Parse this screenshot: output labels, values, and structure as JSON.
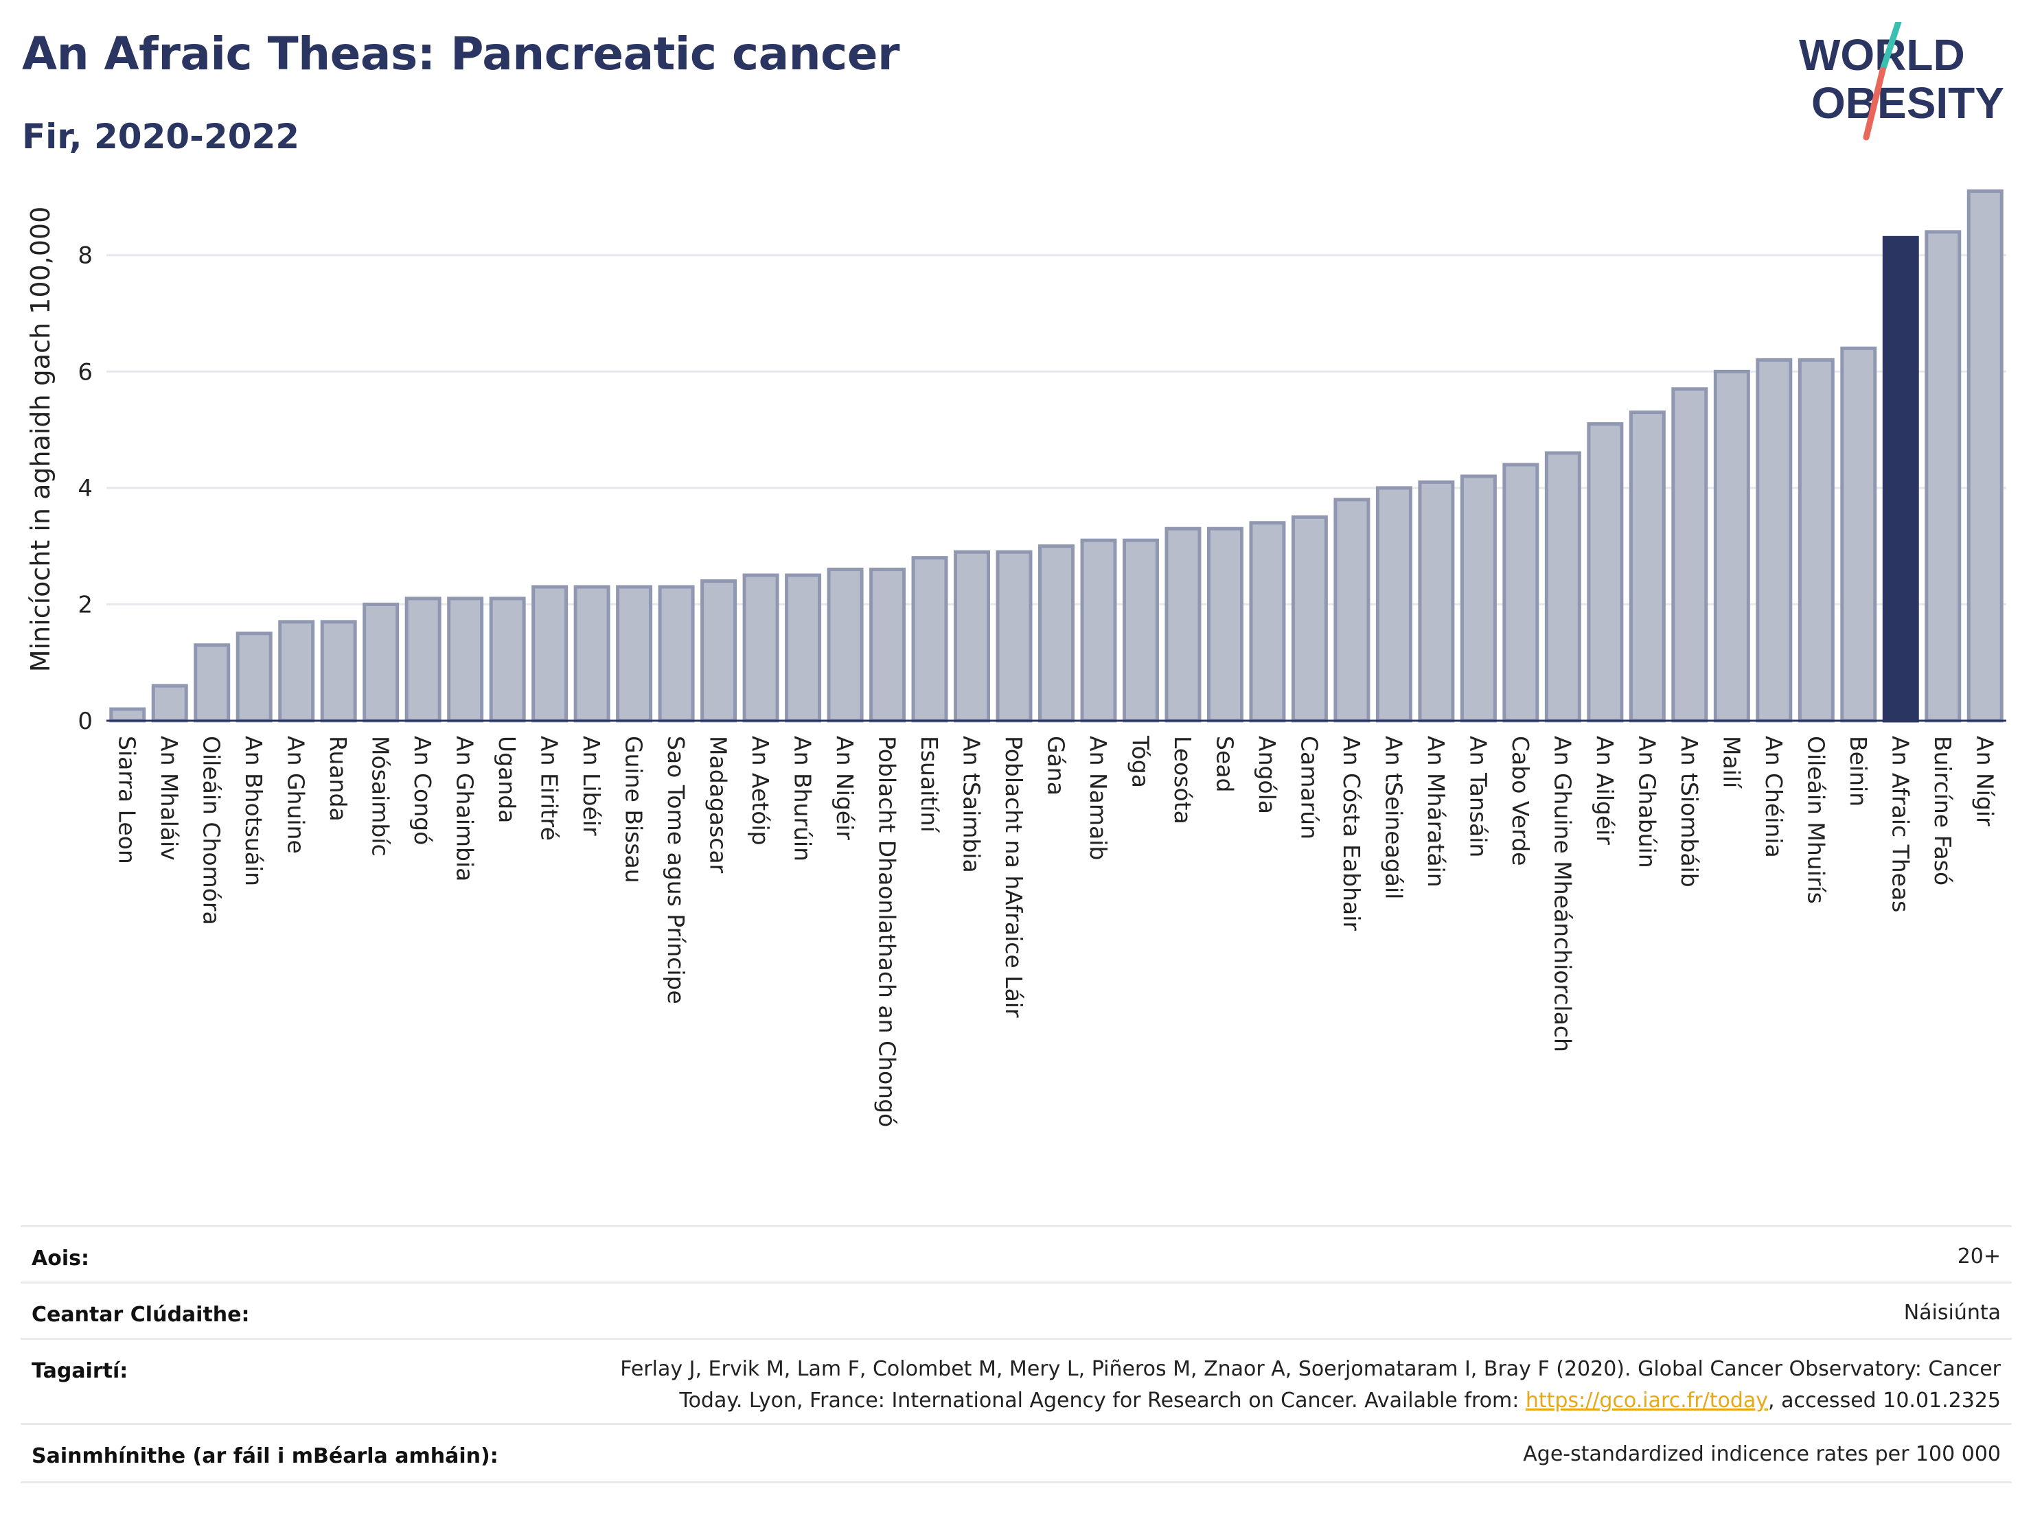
{
  "header": {
    "title": "An Afraic Theas: Pancreatic cancer",
    "subtitle": "Fir, 2020-2022"
  },
  "logo": {
    "line1": "WORLD",
    "line2": "OBESITY",
    "colors": {
      "text": "#2b3561",
      "slash_teal": "#3bbfb1",
      "slash_red": "#e8665a"
    }
  },
  "chart_data": {
    "type": "bar",
    "ylabel": "Minicíocht in aghaidh gach 100,000",
    "ylim": [
      0,
      9.2
    ],
    "yticks": [
      0,
      2,
      4,
      6,
      8
    ],
    "grid": true,
    "highlight": "An Afraic Theas",
    "colors": {
      "bar": "#b8bdcc",
      "bar_border": "#9097b1",
      "highlight": "#2b3561",
      "axis": "#2b3561",
      "grid": "#e6e8ef"
    },
    "categories": [
      "Siarra Leon",
      "An Mhaláiv",
      "Oileáin Chomóra",
      "An Bhotsuáin",
      "An Ghuine",
      "Ruanda",
      "Mósaimbíc",
      "An Congó",
      "An Ghaimbia",
      "Uganda",
      "An Eiritré",
      "An Libéir",
      "Guine Bissau",
      "Sao Tome agus Príncipe",
      "Madagascar",
      "An Aetóip",
      "An Bhurúin",
      "An Nigéir",
      "Poblacht Dhaonlathach an Chongó",
      "Esuaitíní",
      "An tSaimbia",
      "Poblacht na hAfraice Láir",
      "Gána",
      "An Namaib",
      "Tóga",
      "Leosóta",
      "Sead",
      "Angóla",
      "Camarún",
      "An Cósta Eabhair",
      "An tSeineagáil",
      "An Mháratáin",
      "An Tansáin",
      "Cabo Verde",
      "An Ghuine Mheánchiorclach",
      "An Ailgéir",
      "An Ghabúin",
      "An tSiombáib",
      "Mailí",
      "An Chéinia",
      "Oileáin Mhuirís",
      "Beinin",
      "An Afraic Theas",
      "Buircíne Fasó",
      "An Nígir"
    ],
    "values": [
      0.2,
      0.6,
      1.3,
      1.5,
      1.7,
      1.7,
      2.0,
      2.1,
      2.1,
      2.1,
      2.3,
      2.3,
      2.3,
      2.3,
      2.4,
      2.5,
      2.5,
      2.6,
      2.6,
      2.8,
      2.9,
      2.9,
      3.0,
      3.1,
      3.1,
      3.3,
      3.3,
      3.4,
      3.5,
      3.8,
      4.0,
      4.1,
      4.2,
      4.4,
      4.6,
      5.1,
      5.3,
      5.7,
      6.0,
      6.2,
      6.2,
      6.4,
      8.3,
      8.4,
      9.1
    ]
  },
  "info": {
    "age": {
      "label": "Aois:",
      "value": "20+"
    },
    "coverage": {
      "label": "Ceantar Clúdaithe:",
      "value": "Náisiúnta"
    },
    "references": {
      "label": "Tagairtí:",
      "line1": "Ferlay J, Ervik M, Lam F, Colombet M, Mery L, Piñeros M, Znaor A, Soerjomataram I, Bray F (2020). Global Cancer Observatory: Cancer",
      "line2_pre": "Today. Lyon, France: International Agency for Research on Cancer. Available from: ",
      "link": "https://gco.iarc.fr/today",
      "line2_post": ", accessed 10.01.2325"
    },
    "definitions": {
      "label": "Sainmhínithe (ar fáil i mBéarla amháin):",
      "value": "Age-standardized indicence rates per 100 000"
    }
  }
}
